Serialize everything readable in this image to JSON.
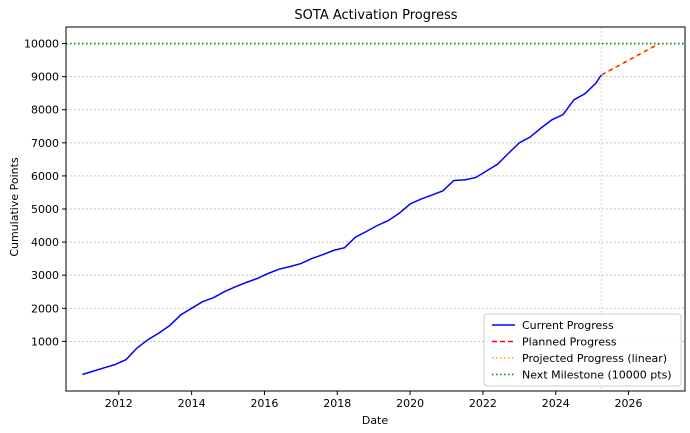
{
  "chart_data": {
    "type": "line",
    "title": "SOTA Activation Progress",
    "xlabel": "Date",
    "ylabel": "Cumulative Points",
    "xlim": [
      2010.55,
      2027.55
    ],
    "ylim": [
      -500,
      10500
    ],
    "x_ticks": [
      2012,
      2014,
      2016,
      2018,
      2020,
      2022,
      2024,
      2026
    ],
    "x_tick_labels": [
      "2012",
      "2014",
      "2016",
      "2018",
      "2020",
      "2022",
      "2024",
      "2026"
    ],
    "y_ticks": [
      1000,
      2000,
      3000,
      4000,
      5000,
      6000,
      7000,
      8000,
      9000,
      10000
    ],
    "y_tick_labels": [
      "1000",
      "2000",
      "3000",
      "4000",
      "5000",
      "6000",
      "7000",
      "8000",
      "9000",
      "10000"
    ],
    "grid": "y-dotted",
    "legend_position": "bottom-right",
    "series": [
      {
        "name": "Current Progress",
        "style": "solid",
        "color": "#0000ff",
        "x": [
          2011.0,
          2011.3,
          2011.6,
          2011.9,
          2012.2,
          2012.5,
          2012.8,
          2013.1,
          2013.4,
          2013.7,
          2014.0,
          2014.3,
          2014.6,
          2014.9,
          2015.2,
          2015.5,
          2015.8,
          2016.1,
          2016.4,
          2016.7,
          2017.0,
          2017.3,
          2017.6,
          2017.9,
          2018.2,
          2018.5,
          2018.8,
          2019.1,
          2019.4,
          2019.7,
          2020.0,
          2020.3,
          2020.6,
          2020.9,
          2021.2,
          2021.5,
          2021.8,
          2022.1,
          2022.4,
          2022.7,
          2023.0,
          2023.3,
          2023.6,
          2023.9,
          2024.2,
          2024.5,
          2024.8,
          2025.1,
          2025.25
        ],
        "y": [
          0,
          100,
          200,
          300,
          450,
          800,
          1050,
          1250,
          1480,
          1800,
          2000,
          2200,
          2320,
          2500,
          2650,
          2780,
          2900,
          3050,
          3180,
          3260,
          3350,
          3500,
          3620,
          3750,
          3830,
          4150,
          4320,
          4500,
          4650,
          4870,
          5150,
          5300,
          5420,
          5550,
          5860,
          5880,
          5950,
          6150,
          6350,
          6680,
          7000,
          7180,
          7450,
          7700,
          7850,
          8300,
          8480,
          8800,
          9050
        ]
      },
      {
        "name": "Planned Progress",
        "style": "dashed",
        "color": "#ff0000",
        "x": [
          2025.25,
          2026.85
        ],
        "y": [
          9050,
          10000
        ]
      },
      {
        "name": "Projected Progress (linear)",
        "style": "dotted",
        "color": "#ffa500",
        "x": [
          2025.25,
          2026.85
        ],
        "y": [
          9050,
          10000
        ]
      },
      {
        "name": "Next Milestone (10000 pts)",
        "style": "dotted",
        "color": "#008000",
        "hline": 10000
      }
    ],
    "vline_x": 2025.25
  }
}
